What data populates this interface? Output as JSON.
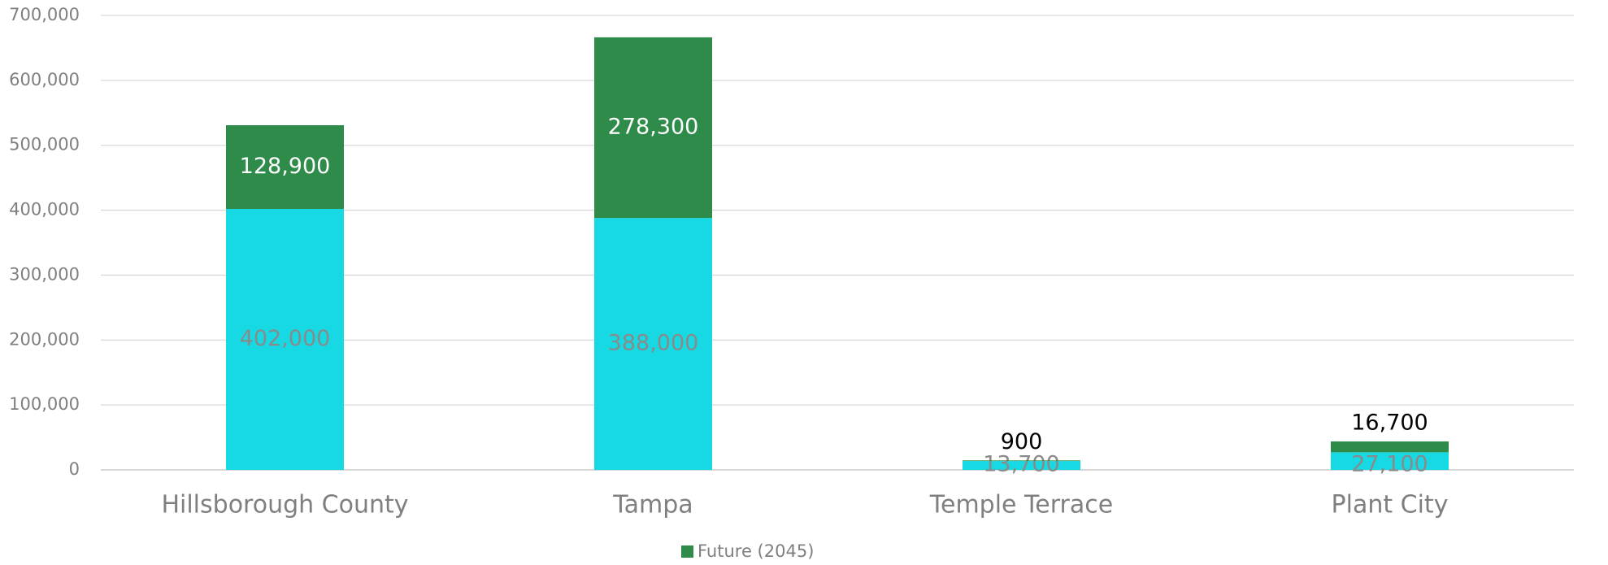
{
  "chart_data": {
    "type": "stacked_bar",
    "categories": [
      "Hillsborough County",
      "Tampa",
      "Temple Terrace",
      "Plant City"
    ],
    "series": [
      {
        "color": "#17d9e3",
        "values": [
          402000,
          388000,
          13700,
          27100
        ],
        "value_labels": [
          "402,000",
          "388,000",
          "13,700",
          "27,100"
        ]
      },
      {
        "name": "Future (2045)",
        "color": "#2e8b4a",
        "values": [
          128900,
          278300,
          900,
          16700
        ],
        "value_labels": [
          "128,900",
          "278,300",
          "900",
          "16,700"
        ]
      }
    ],
    "ylim": [
      0,
      700000
    ],
    "yticks": [
      0,
      {
        "value": 100000,
        "label": "100,000"
      },
      {
        "value": 200000,
        "label": "200,000"
      },
      {
        "value": 300000,
        "label": "300,000"
      },
      {
        "value": 400000,
        "label": "400,000"
      },
      {
        "value": 500000,
        "label": "500,000"
      },
      {
        "value": 600000,
        "label": "600,000"
      },
      {
        "value": 700000,
        "label": "700,000"
      }
    ],
    "grid": true,
    "legend": "bottom"
  }
}
